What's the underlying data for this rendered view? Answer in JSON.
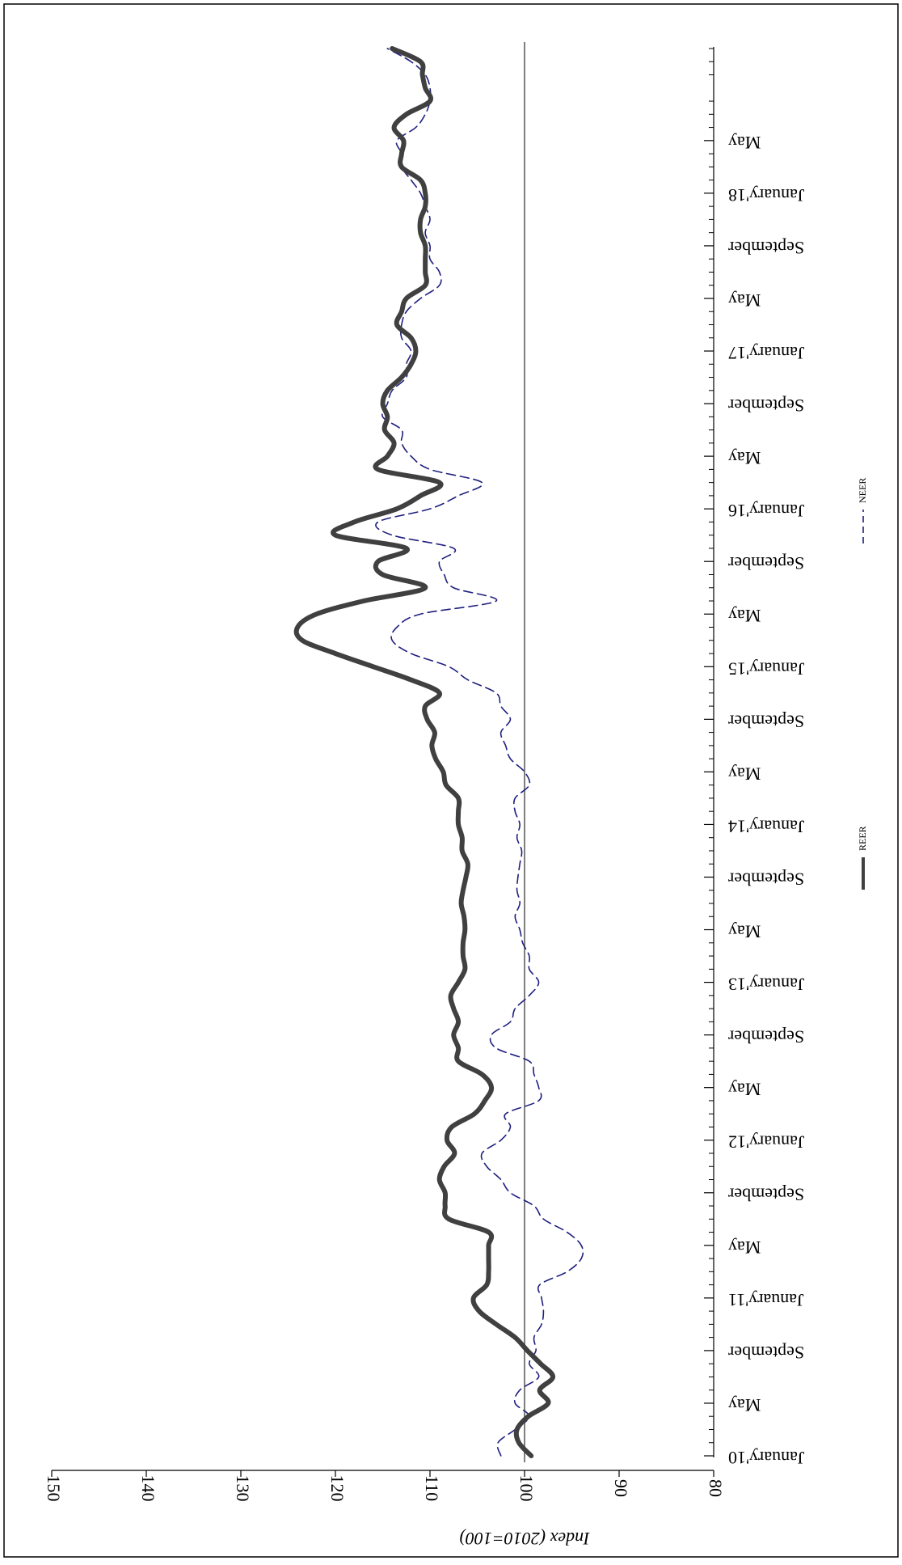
{
  "chart_data": {
    "type": "line",
    "title": "",
    "ylabel": "Index (2010=100)",
    "xlabel": "",
    "ylim": [
      80,
      150
    ],
    "yticks": [
      80,
      90,
      100,
      110,
      120,
      130,
      140,
      150
    ],
    "x_tick_labels": [
      "January'10",
      "May",
      "September",
      "January'11",
      "May",
      "September",
      "January'12",
      "May",
      "September",
      "January'13",
      "May",
      "September",
      "January'14",
      "May",
      "September",
      "January'15",
      "May",
      "September",
      "January'16",
      "May",
      "September",
      "January'17",
      "May",
      "September",
      "January'18",
      "May"
    ],
    "reference_line": 100,
    "legend_position": "bottom",
    "legend": [
      {
        "label": "REER",
        "style": "solid",
        "color": "#404040"
      },
      {
        "label": "NEER",
        "style": "dashed",
        "color": "#1f1f80"
      }
    ],
    "series": [
      {
        "name": "REER",
        "color": "#404040",
        "style": "solid",
        "values": [
          99.3,
          100.6,
          100.8,
          99.6,
          97.5,
          98.4,
          97.0,
          98.3,
          99.7,
          101.0,
          103.0,
          104.8,
          105.4,
          104.0,
          103.8,
          103.8,
          103.8,
          103.8,
          108.0,
          108.4,
          108.4,
          109.0,
          108.5,
          107.4,
          108.2,
          107.7,
          105.3,
          104.2,
          103.5,
          104.5,
          107.0,
          107.0,
          107.5,
          107.0,
          107.5,
          107.8,
          107.0,
          106.3,
          106.5,
          106.5,
          106.3,
          106.4,
          106.7,
          106.5,
          106.2,
          106.0,
          106.6,
          106.6,
          107.0,
          107.0,
          107.0,
          108.3,
          108.6,
          109.4,
          109.8,
          109.5,
          110.3,
          110.5,
          109.0,
          112.0,
          116.0,
          120.0,
          123.5,
          124.0,
          122.0,
          117.0,
          110.5,
          115.0,
          115.5,
          112.5,
          120.0,
          118.0,
          113.5,
          111.0,
          109.0,
          115.5,
          114.5,
          113.8,
          114.8,
          114.5,
          115.0,
          114.5,
          113.0,
          112.0,
          111.5,
          112.0,
          113.5,
          113.0,
          112.5,
          110.5,
          110.5,
          110.5,
          110.5,
          111.0,
          111.0,
          110.5,
          110.5,
          111.0,
          113.0,
          113.0,
          112.8,
          113.8,
          112.5,
          110.0,
          110.5,
          110.8,
          111.0,
          114.0
        ]
      },
      {
        "name": "NEER",
        "color": "#1f1f80",
        "style": "dashed",
        "values": [
          102.5,
          102.8,
          101.0,
          99.5,
          101.0,
          100.5,
          98.5,
          99.5,
          98.8,
          99.0,
          98.2,
          98.0,
          98.2,
          98.4,
          95.5,
          94.0,
          94.0,
          95.5,
          98.0,
          99.0,
          101.5,
          102.5,
          104.0,
          104.5,
          102.5,
          101.5,
          102.0,
          98.5,
          98.5,
          99.0,
          99.5,
          103.0,
          103.5,
          101.5,
          101.0,
          99.5,
          98.5,
          99.5,
          99.5,
          100.2,
          100.5,
          101.0,
          100.5,
          100.8,
          100.7,
          100.5,
          100.3,
          100.8,
          100.5,
          101.0,
          101.0,
          99.5,
          100.0,
          101.5,
          102.0,
          102.5,
          101.5,
          102.5,
          103.0,
          106.0,
          108.0,
          112.0,
          114.0,
          113.5,
          111.0,
          103.0,
          107.5,
          108.5,
          109.0,
          107.5,
          114.0,
          115.5,
          110.0,
          107.0,
          104.5,
          110.0,
          112.0,
          113.0,
          113.0,
          115.0,
          114.5,
          114.0,
          112.5,
          112.5,
          112.0,
          113.0,
          113.0,
          112.5,
          111.0,
          109.0,
          109.0,
          110.0,
          110.0,
          110.5,
          110.0,
          110.5,
          111.0,
          112.0,
          113.0,
          113.0,
          113.5,
          111.5,
          110.5,
          110.0,
          110.0,
          110.5,
          112.0,
          114.5
        ]
      }
    ]
  }
}
